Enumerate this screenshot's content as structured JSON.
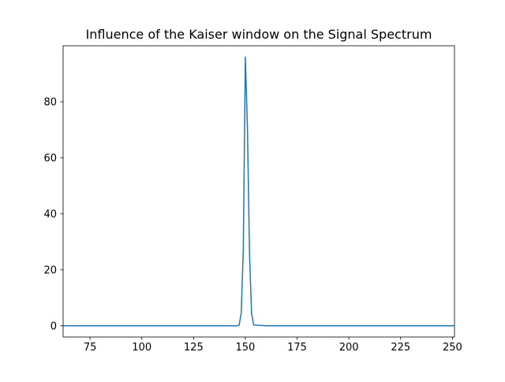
{
  "chart_data": {
    "type": "line",
    "title": "Influence of the Kaiser window on the Signal Spectrum",
    "xlabel": "",
    "ylabel": "",
    "xlim": [
      62,
      251
    ],
    "ylim": [
      -4,
      100
    ],
    "grid": false,
    "legend": "none",
    "x_ticks": [
      75,
      100,
      125,
      150,
      175,
      200,
      225,
      250
    ],
    "y_ticks": [
      0,
      20,
      40,
      60,
      80
    ],
    "series": [
      {
        "color": "#1f77b4",
        "x": [
          62,
          140,
          146,
          147,
          148,
          149,
          150,
          151,
          152,
          153,
          154,
          160,
          200,
          251
        ],
        "y": [
          0,
          0,
          0,
          0.3,
          4.5,
          27,
          96,
          71,
          26,
          4.5,
          0.3,
          0,
          0,
          0
        ]
      }
    ]
  }
}
